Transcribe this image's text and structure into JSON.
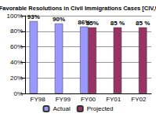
{
  "chart_data": {
    "type": "bar",
    "title": "%of Favorable Resolutions in Civil Immigrations Cases [CIV,USA]",
    "categories": [
      "FY98",
      "FY99",
      "FY00",
      "FY01",
      "FY02"
    ],
    "series": [
      {
        "name": "Actual",
        "color": "#9999ff",
        "values": [
          93,
          90,
          86,
          null,
          null
        ],
        "value_labels": [
          "93%",
          "90%",
          "86%",
          null,
          null
        ]
      },
      {
        "name": "Projected",
        "color": "#993366",
        "values": [
          null,
          null,
          85,
          85,
          85
        ],
        "value_labels": [
          null,
          null,
          "85%",
          "85 %",
          "85 %"
        ]
      }
    ],
    "ylim": [
      0,
      100
    ],
    "yticks": [
      {
        "value": 0,
        "label": "0%"
      },
      {
        "value": 20,
        "label": "20%"
      },
      {
        "value": 40,
        "label": "40%"
      },
      {
        "value": 60,
        "label": "60%"
      },
      {
        "value": 80,
        "label": "80%"
      },
      {
        "value": 100,
        "label": "100%"
      }
    ],
    "grid": true,
    "legend": "bottom",
    "data_labels": true
  }
}
